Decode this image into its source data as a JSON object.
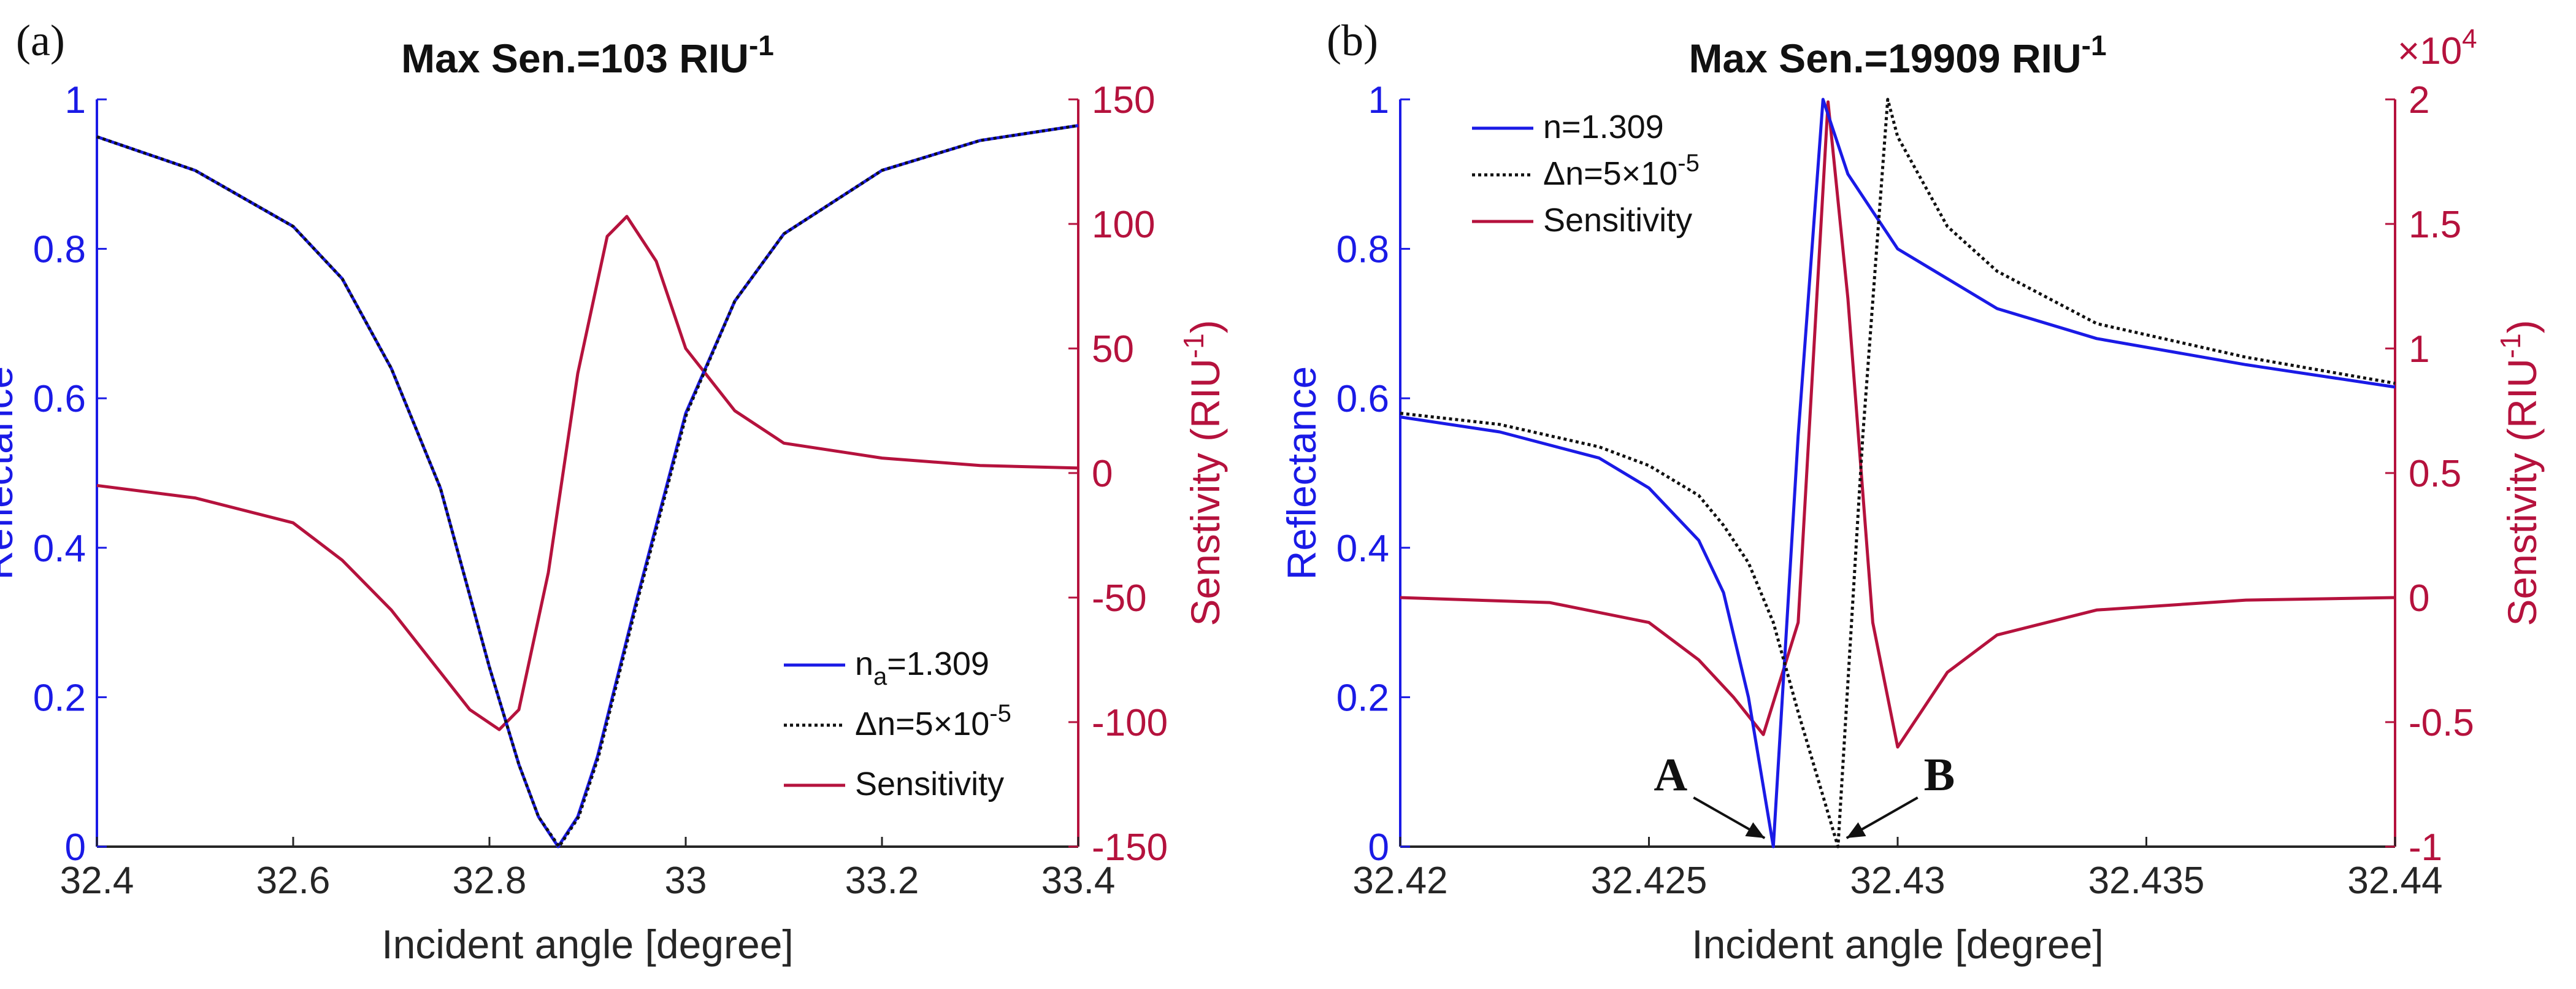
{
  "colors": {
    "blue": "#1a1ae6",
    "red": "#b5123d",
    "black": "#111111",
    "axis": "#262626"
  },
  "chart_data": [
    {
      "type": "line",
      "panel_label": "(a)",
      "title": "Max Sen.=103 RIU",
      "title_sup": "-1",
      "xlabel": "Incident angle [degree]",
      "ylabel_left": "Reflectance",
      "ylabel_right": "Senstivity (RIU",
      "ylabel_right_sup": "-1",
      "ylabel_right_end": ")",
      "xlim": [
        32.4,
        33.4
      ],
      "ylim_left": [
        0,
        1
      ],
      "ylim_right": [
        -150,
        150
      ],
      "x_ticks": [
        "32.4",
        "32.6",
        "32.8",
        "33",
        "33.2",
        "33.4"
      ],
      "x_tick_values": [
        32.4,
        32.6,
        32.8,
        33.0,
        33.2,
        33.4
      ],
      "yl_ticks": [
        "0",
        "0.2",
        "0.4",
        "0.6",
        "0.8",
        "1"
      ],
      "yl_tick_values": [
        0,
        0.2,
        0.4,
        0.6,
        0.8,
        1
      ],
      "yr_ticks": [
        "-150",
        "-100",
        "-50",
        "0",
        "50",
        "100",
        "150"
      ],
      "yr_tick_values": [
        -150,
        -100,
        -50,
        0,
        50,
        100,
        150
      ],
      "legend": {
        "position": "bottom-right",
        "entries": [
          {
            "base": "n",
            "sub": "a",
            "rest": "=1.309",
            "style": "blue-solid"
          },
          {
            "base": "Δn=5×10",
            "sup": "-5",
            "style": "black-dotted"
          },
          {
            "base": "Sensitivity",
            "style": "red-solid"
          }
        ]
      },
      "series": [
        {
          "name": "n_a=1.309",
          "axis": "left",
          "style": "blue-solid",
          "x": [
            32.4,
            32.5,
            32.6,
            32.65,
            32.7,
            32.75,
            32.8,
            32.83,
            32.85,
            32.87,
            32.89,
            32.91,
            32.95,
            33.0,
            33.05,
            33.1,
            33.2,
            33.3,
            33.4
          ],
          "y": [
            0.95,
            0.905,
            0.83,
            0.76,
            0.64,
            0.48,
            0.24,
            0.11,
            0.04,
            0.0,
            0.04,
            0.12,
            0.33,
            0.58,
            0.73,
            0.82,
            0.905,
            0.945,
            0.965
          ]
        },
        {
          "name": "Δn=5×10^-5",
          "axis": "left",
          "style": "black-dotted",
          "x": [
            32.4,
            32.5,
            32.6,
            32.65,
            32.7,
            32.75,
            32.8,
            32.83,
            32.85,
            32.871,
            32.891,
            32.911,
            32.951,
            33.001,
            33.05,
            33.1,
            33.2,
            33.3,
            33.4
          ],
          "y": [
            0.95,
            0.905,
            0.83,
            0.76,
            0.64,
            0.48,
            0.24,
            0.11,
            0.04,
            0.0,
            0.04,
            0.12,
            0.33,
            0.58,
            0.73,
            0.82,
            0.905,
            0.945,
            0.965
          ]
        },
        {
          "name": "Sensitivity",
          "axis": "right",
          "style": "red-solid",
          "x": [
            32.4,
            32.5,
            32.6,
            32.65,
            32.7,
            32.75,
            32.78,
            32.81,
            32.83,
            32.86,
            32.89,
            32.92,
            32.94,
            32.97,
            33.0,
            33.05,
            33.1,
            33.2,
            33.3,
            33.4
          ],
          "y": [
            -5,
            -10,
            -20,
            -35,
            -55,
            -80,
            -95,
            -103,
            -95,
            -40,
            40,
            95,
            103,
            85,
            50,
            25,
            12,
            6,
            3,
            2
          ]
        }
      ]
    },
    {
      "type": "line",
      "panel_label": "(b)",
      "title": "Max Sen.=19909 RIU",
      "title_sup": "-1",
      "xlabel": "Incident angle [degree]",
      "ylabel_left": "Reflectance",
      "ylabel_right": "Senstivity (RIU",
      "ylabel_right_sup": "-1",
      "ylabel_right_end": ")",
      "right_multiplier": "×10",
      "right_multiplier_sup": "4",
      "xlim": [
        32.42,
        32.44
      ],
      "ylim_left": [
        0,
        1
      ],
      "ylim_right": [
        -1,
        2
      ],
      "x_ticks": [
        "32.42",
        "32.425",
        "32.43",
        "32.435",
        "32.44"
      ],
      "x_tick_values": [
        32.42,
        32.425,
        32.43,
        32.435,
        32.44
      ],
      "yl_ticks": [
        "0",
        "0.2",
        "0.4",
        "0.6",
        "0.8",
        "1"
      ],
      "yl_tick_values": [
        0,
        0.2,
        0.4,
        0.6,
        0.8,
        1
      ],
      "yr_ticks": [
        "-1",
        "-0.5",
        "0",
        "0.5",
        "1",
        "1.5",
        "2"
      ],
      "yr_tick_values": [
        -1,
        -0.5,
        0,
        0.5,
        1,
        1.5,
        2
      ],
      "legend": {
        "position": "top-left",
        "entries": [
          {
            "base": "n=1.309",
            "style": "blue-solid"
          },
          {
            "base": "Δn=5×10",
            "sup": "-5",
            "style": "black-dotted"
          },
          {
            "base": "Sensitivity",
            "style": "red-solid"
          }
        ]
      },
      "annotations": [
        {
          "text": "A",
          "x": 32.4275,
          "y": 0.0,
          "side": "left"
        },
        {
          "text": "B",
          "x": 32.4288,
          "y": 0.0,
          "side": "right"
        }
      ],
      "series": [
        {
          "name": "n=1.309",
          "axis": "left",
          "style": "blue-solid",
          "x": [
            32.42,
            32.422,
            32.424,
            32.425,
            32.426,
            32.4265,
            32.427,
            32.4275,
            32.428,
            32.4285,
            32.429,
            32.4295,
            32.43,
            32.431,
            32.432,
            32.434,
            32.437,
            32.44
          ],
          "y": [
            0.575,
            0.555,
            0.52,
            0.48,
            0.41,
            0.34,
            0.2,
            0.0,
            0.55,
            1.0,
            0.9,
            0.85,
            0.8,
            0.76,
            0.72,
            0.68,
            0.645,
            0.615
          ]
        },
        {
          "name": "Δn=5×10^-5",
          "axis": "left",
          "style": "black-dotted",
          "x": [
            32.42,
            32.422,
            32.424,
            32.425,
            32.426,
            32.4265,
            32.427,
            32.4275,
            32.428,
            32.4288,
            32.4293,
            32.4298,
            32.43,
            32.431,
            32.432,
            32.434,
            32.437,
            32.44
          ],
          "y": [
            0.58,
            0.565,
            0.535,
            0.51,
            0.47,
            0.43,
            0.38,
            0.3,
            0.18,
            0.0,
            0.55,
            1.0,
            0.95,
            0.83,
            0.77,
            0.7,
            0.655,
            0.62
          ]
        },
        {
          "name": "Sensitivity",
          "axis": "right",
          "style": "red-solid",
          "x": [
            32.42,
            32.423,
            32.425,
            32.426,
            32.4267,
            32.4273,
            32.428,
            32.4286,
            32.429,
            32.4295,
            32.43,
            32.4305,
            32.431,
            32.432,
            32.434,
            32.437,
            32.44
          ],
          "y": [
            0.0,
            -0.02,
            -0.1,
            -0.25,
            -0.4,
            -0.55,
            -0.1,
            1.99,
            1.2,
            -0.1,
            -0.6,
            -0.45,
            -0.3,
            -0.15,
            -0.05,
            -0.01,
            0.0
          ]
        }
      ]
    }
  ]
}
